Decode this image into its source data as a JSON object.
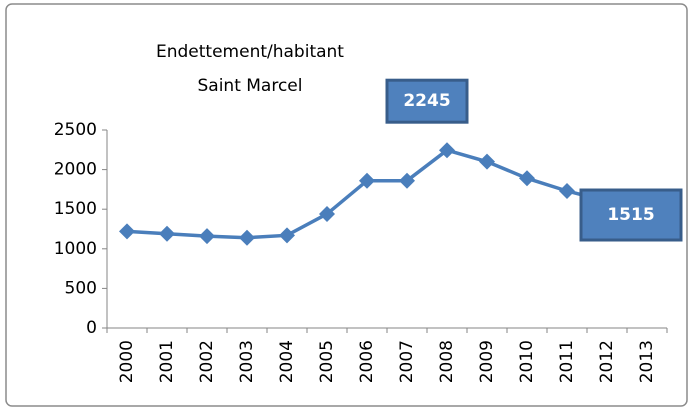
{
  "chart_data": {
    "type": "line",
    "title": [
      "Endettement/habitant",
      "Saint Marcel"
    ],
    "categories": [
      "2000",
      "2001",
      "2002",
      "2003",
      "2004",
      "2005",
      "2006",
      "2007",
      "2008",
      "2009",
      "2010",
      "2011",
      "2012",
      "2013"
    ],
    "series": [
      {
        "color": "#4a7ebb",
        "values": [
          1220,
          1190,
          1160,
          1140,
          1170,
          1440,
          1860,
          1860,
          2245,
          2100,
          1890,
          1730,
          1600,
          1515
        ],
        "value_labels": [
          null,
          null,
          null,
          null,
          null,
          null,
          null,
          null,
          "2245",
          null,
          null,
          null,
          null,
          "1515"
        ]
      }
    ],
    "ylim": [
      0,
      2500
    ],
    "yticks": [
      0,
      500,
      1000,
      1500,
      2000,
      2500
    ],
    "grid": false
  }
}
